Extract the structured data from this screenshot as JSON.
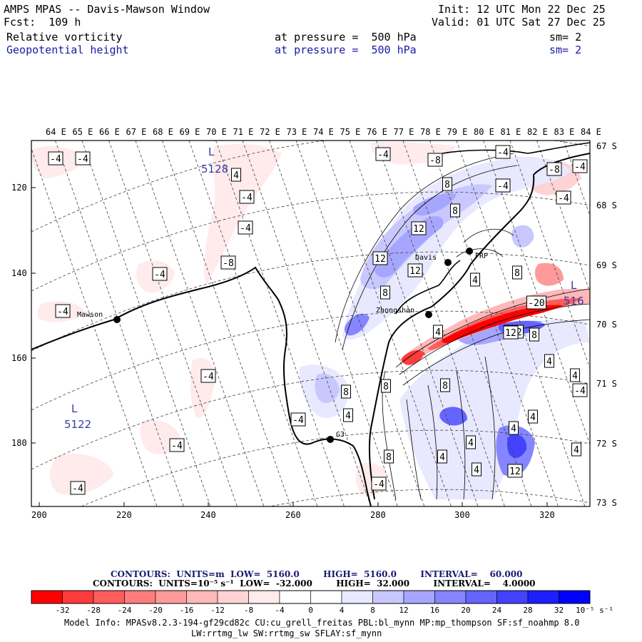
{
  "header": {
    "title": "AMPS MPAS -- Davis-Mawson Window",
    "forecast": "Fcst:  109 h",
    "init": "Init: 12 UTC Mon 22 Dec 25",
    "valid": "Valid: 01 UTC Sat 27 Dec 25",
    "field1": {
      "name": "Relative vorticity",
      "pressure": "at pressure =  500 hPa",
      "sm": "sm= 2"
    },
    "field2": {
      "name": "Geopotential height",
      "pressure": "at pressure =  500 hPa",
      "sm": "sm= 2"
    }
  },
  "axes": {
    "top_lon_labels": [
      "64 E",
      "65 E",
      "66 E",
      "67 E",
      "68 E",
      "69 E",
      "70 E",
      "71 E",
      "72 E",
      "73 E",
      "74 E",
      "75 E",
      "76 E",
      "77 E",
      "78 E",
      "79 E",
      "80 E",
      "81 E",
      "82 E",
      "83 E",
      "84 E"
    ],
    "right_lat_labels": [
      "67 S",
      "68 S",
      "69 S",
      "70 S",
      "71 S",
      "72 S",
      "73 S"
    ],
    "left_y_labels": [
      "120",
      "140",
      "160",
      "180"
    ],
    "bottom_x_labels": [
      "200",
      "220",
      "240",
      "260",
      "280",
      "300",
      "320"
    ]
  },
  "stations": [
    {
      "name": "Mawson",
      "label": "Mawson"
    },
    {
      "name": "Davis",
      "label": "Davis"
    },
    {
      "name": "Zhongshan",
      "label": "Zhongshan"
    },
    {
      "name": "G3",
      "label": "G3"
    },
    {
      "name": "Progress",
      "label": "PRP"
    }
  ],
  "lows": [
    {
      "letter": "L",
      "value": "5128"
    },
    {
      "letter": "L",
      "value": "5122"
    },
    {
      "letter": "L",
      "value": "516"
    }
  ],
  "contour_labels": [
    "-4",
    "-4",
    "4",
    "-4",
    "-4",
    "-4",
    "-8",
    "-4",
    "-4",
    "-4",
    "-4",
    "-4",
    "-4",
    "-4",
    "-8",
    "-4",
    "8",
    "-4",
    "8",
    "12",
    "12",
    "12",
    "4",
    "8",
    "8",
    "4",
    "-8",
    "-4",
    "8",
    "4",
    "-20",
    "-12",
    "12",
    "8",
    "4",
    "4",
    "-4",
    "8",
    "4",
    "8",
    "4",
    "4",
    "4",
    "4",
    "12",
    "4",
    "8",
    "-4"
  ],
  "colorbar": {
    "contours1": "CONTOURS:  UNITS=m  LOW=  5160.0        HIGH=  5160.0        INTERVAL=    60.000",
    "contours2": "CONTOURS:  UNITS=10⁻⁵ s⁻¹  LOW=  -32.000        HIGH=  32.000        INTERVAL=    4.0000",
    "tick_labels": [
      "-32",
      "-28",
      "-24",
      "-20",
      "-16",
      "-12",
      "-8",
      "-4",
      "0",
      "4",
      "8",
      "12",
      "16",
      "20",
      "24",
      "28",
      "32"
    ],
    "unit": "10⁻⁵ s⁻¹",
    "colors": [
      "#ff0000",
      "#ff3b3b",
      "#ff5c5c",
      "#ff7d7d",
      "#ff9a9a",
      "#ffb8b8",
      "#ffd3d3",
      "#ffebeb",
      "#ffffff",
      "#ffffff",
      "#e8e8ff",
      "#c8c8ff",
      "#a6a6ff",
      "#8585ff",
      "#6464ff",
      "#4242ff",
      "#1e1eff",
      "#0000ff"
    ]
  },
  "model_info": {
    "line1": "Model Info: MPASv8.2.3-194-gf29cd82c CU:cu_grell_freitas PBL:bl_mynn MP:mp_thompson SF:sf_noahmp 8.0",
    "line2": "LW:rrtmg_lw SW:rrtmg_sw SFLAY:sf_mynn"
  }
}
